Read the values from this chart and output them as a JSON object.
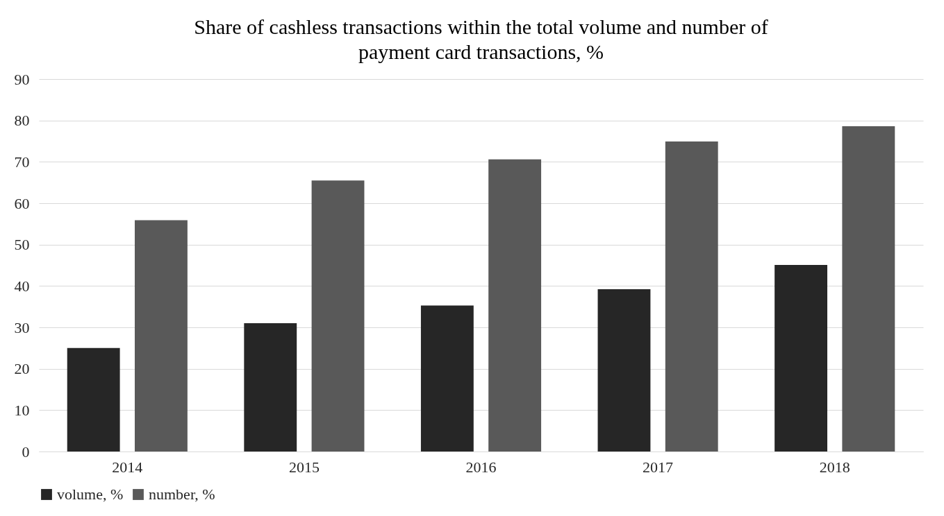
{
  "chart_data": {
    "type": "bar",
    "title": "Share of cashless transactions within the total volume and number of payment card transactions, %",
    "categories": [
      "2014",
      "2015",
      "2016",
      "2017",
      "2018"
    ],
    "series": [
      {
        "name": "volume, %",
        "color": "#262626",
        "values": [
          25,
          31,
          35.3,
          39.2,
          45.1
        ]
      },
      {
        "name": "number, %",
        "color": "#595959",
        "values": [
          55.9,
          65.5,
          70.6,
          74.9,
          78.6
        ]
      }
    ],
    "ylim": [
      0,
      90
    ],
    "yticks": [
      0,
      10,
      20,
      30,
      40,
      50,
      60,
      70,
      80,
      90
    ],
    "grid": "y",
    "legend": "bottom"
  }
}
